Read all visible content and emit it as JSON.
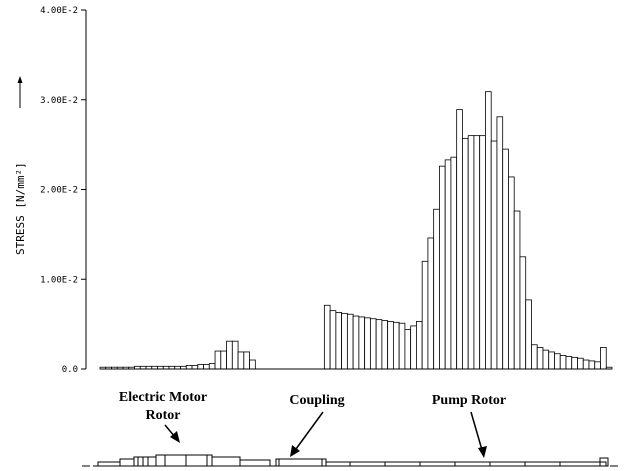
{
  "chart_data": {
    "type": "bar",
    "title": "",
    "xlabel": "",
    "ylabel": "STRESS [N/mm²]",
    "ylabel_arrow": "↑",
    "ylim": [
      0,
      0.04
    ],
    "yticks": [
      {
        "value": 0.0,
        "label": "0.0"
      },
      {
        "value": 0.01,
        "label": "1.00E-2"
      },
      {
        "value": 0.02,
        "label": "2.00E-2"
      },
      {
        "value": 0.03,
        "label": "3.00E-2"
      },
      {
        "value": 0.04,
        "label": "4.00E-2"
      }
    ],
    "grid": false,
    "series": [
      {
        "values": [
          0.0002,
          0.0002,
          0.0002,
          0.0002,
          0.0002,
          0.0002,
          0.0003,
          0.0003,
          0.0003,
          0.0003,
          0.0003,
          0.0003,
          0.0003,
          0.0003,
          0.0003,
          0.0004,
          0.0004,
          0.0005,
          0.0005,
          0.0006,
          0.002,
          0.002,
          0.0031,
          0.0031,
          0.0019,
          0.0019,
          0.001,
          0,
          0,
          0,
          0,
          0,
          0,
          0,
          0,
          0,
          0,
          0,
          0,
          0.0071,
          0.0065,
          0.0063,
          0.0062,
          0.0061,
          0.0059,
          0.0058,
          0.0057,
          0.0056,
          0.0055,
          0.0054,
          0.0053,
          0.0052,
          0.0051,
          0.0044,
          0.0048,
          0.0053,
          0.012,
          0.0146,
          0.0178,
          0.0226,
          0.0233,
          0.0236,
          0.0289,
          0.0257,
          0.026,
          0.026,
          0.026,
          0.0309,
          0.0254,
          0.0281,
          0.0245,
          0.0214,
          0.0176,
          0.0125,
          0.0077,
          0.0027,
          0.0024,
          0.0021,
          0.0019,
          0.0017,
          0.0015,
          0.0014,
          0.0013,
          0.0012,
          0.001,
          0.0009,
          0.0008,
          0.0024,
          0.0002
        ]
      }
    ],
    "annotations": [
      {
        "lines": [
          "Electric Motor",
          "Rotor"
        ]
      },
      {
        "lines": [
          "Coupling"
        ]
      },
      {
        "lines": [
          "Pump Rotor"
        ]
      }
    ]
  }
}
